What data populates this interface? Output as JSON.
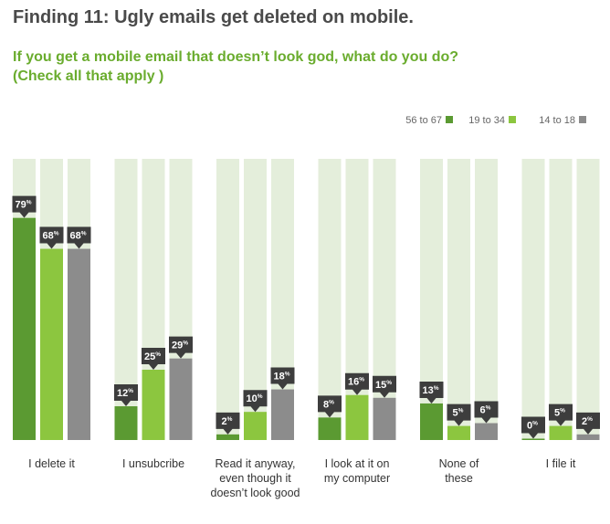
{
  "header": {
    "title": "Finding 11: Ugly emails get deleted on mobile.",
    "subtitle_lines": [
      "If you get a mobile email that doesn’t look god, what do you do?",
      "(Check all that apply )"
    ]
  },
  "chart_data": {
    "type": "bar",
    "categories": [
      [
        "I delete it"
      ],
      [
        "I unsubcribe"
      ],
      [
        "Read it anyway,",
        "even though it",
        "doesn’t look good"
      ],
      [
        "I look at it on",
        "my computer"
      ],
      [
        "None of",
        "these"
      ],
      [
        "I file it"
      ]
    ],
    "series": [
      {
        "name": "56 to 67",
        "color": "#5b9a32",
        "values": [
          79,
          12,
          2,
          8,
          13,
          0
        ]
      },
      {
        "name": "19 to 34",
        "color": "#8cc63f",
        "values": [
          68,
          25,
          10,
          16,
          5,
          5
        ]
      },
      {
        "name": "14 to 18",
        "color": "#8c8c8c",
        "values": [
          68,
          29,
          18,
          15,
          6,
          2
        ]
      }
    ],
    "value_suffix": "%",
    "ylim": [
      0,
      100
    ],
    "background_bar_color": "#e4eedb",
    "label_badge_color": "#3d3d3d",
    "legend_placement": "top-right"
  }
}
